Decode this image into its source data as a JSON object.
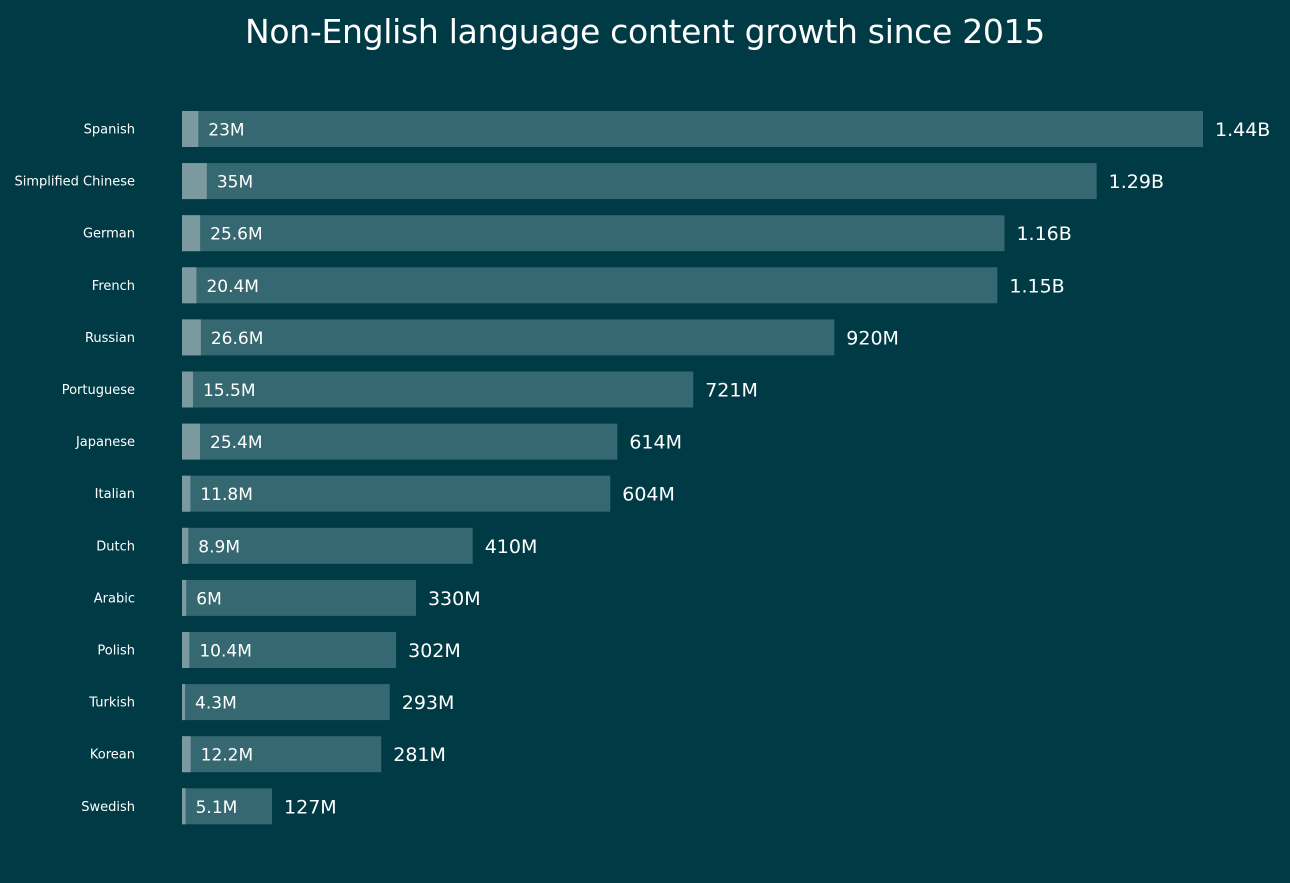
{
  "chart_data": {
    "type": "bar",
    "orientation": "horizontal",
    "title": "Non-English language content growth since 2015",
    "categories": [
      "Spanish",
      "Simplified Chinese",
      "German",
      "French",
      "Russian",
      "Portuguese",
      "Japanese",
      "Italian",
      "Dutch",
      "Arabic",
      "Polish",
      "Turkish",
      "Korean",
      "Swedish"
    ],
    "series": [
      {
        "values": [
          23,
          35,
          25.6,
          20.4,
          26.6,
          15.5,
          25.4,
          11.8,
          8.9,
          6,
          10.4,
          4.3,
          12.2,
          5.1
        ],
        "labels": [
          "23M",
          "35M",
          "25.6M",
          "20.4M",
          "26.6M",
          "15.5M",
          "25.4M",
          "11.8M",
          "8.9M",
          "6M",
          "10.4M",
          "4.3M",
          "12.2M",
          "5.1M"
        ]
      },
      {
        "values": [
          1440,
          1290,
          1160,
          1150,
          920,
          721,
          614,
          604,
          410,
          330,
          302,
          293,
          281,
          127
        ],
        "labels": [
          "1.44B",
          "1.29B",
          "1.16B",
          "1.15B",
          "920M",
          "721M",
          "614M",
          "604M",
          "410M",
          "330M",
          "302M",
          "293M",
          "281M",
          "127M"
        ]
      }
    ],
    "unit": "M",
    "xlim": [
      0,
      1440
    ],
    "grid": false,
    "legend": "none",
    "colors": {
      "background": "#003a45",
      "bar_total": "#356870",
      "bar_base": "#7a9aa0",
      "text": "#ffffff"
    }
  }
}
